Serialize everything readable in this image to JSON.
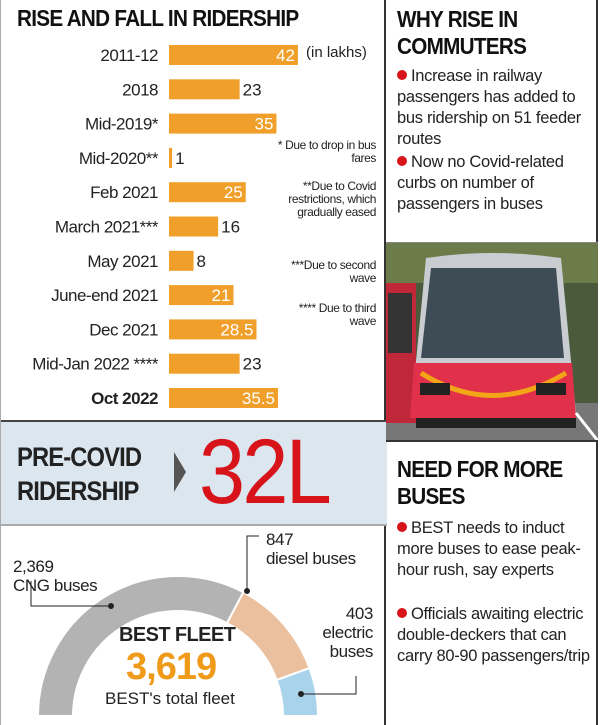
{
  "chart_data": {
    "type": "bar",
    "orientation": "horizontal",
    "title": "RISE AND FALL IN RIDERSHIP",
    "unit_label": "(in lakhs)",
    "categories": [
      "2011-12",
      "2018",
      "Mid-2019*",
      "Mid-2020**",
      "Feb 2021",
      "March 2021***",
      "May 2021",
      "June-end 2021",
      "Dec 2021",
      "Mid-Jan 2022 ****",
      "Oct 2022"
    ],
    "values": [
      42,
      23,
      35,
      1,
      25,
      16,
      8,
      21,
      28.5,
      23,
      35.5
    ],
    "value_labels": [
      "42",
      "23",
      "35",
      "1",
      "25",
      "16",
      "8",
      "21",
      "28.5",
      "23",
      "35.5"
    ],
    "bold_category": "Oct 2022",
    "bar_color": "#f0a02a",
    "footnotes": [
      "* Due to drop in bus fares",
      "**Due to Covid restrictions, which gradually eased",
      "***Due to second wave",
      "**** Due to third wave"
    ]
  },
  "precovid": {
    "label_line1": "PRE-COVID",
    "label_line2": "RIDERSHIP",
    "value": "32L",
    "value_color": "#d7141a"
  },
  "fleet": {
    "title": "BEST FLEET",
    "total": "3,619",
    "total_caption": "BEST's total fleet",
    "segments": [
      {
        "value": 2369,
        "value_label": "2,369",
        "label": "CNG buses",
        "color": "#b3b3b3"
      },
      {
        "value": 847,
        "value_label": "847",
        "label": "diesel buses",
        "color": "#ebc09e"
      },
      {
        "value": 403,
        "value_label": "403",
        "label_line1": "electric",
        "label_line2": "buses",
        "color": "#a9d3ea"
      }
    ]
  },
  "why": {
    "title_line1": "WHY RISE IN",
    "title_line2": "COMMUTERS",
    "bullets": [
      "Increase in railway passengers has added to bus ridership on 51 feeder routes",
      "Now no Covid-related curbs on number of passengers in buses"
    ]
  },
  "need": {
    "title_line1": "NEED FOR MORE",
    "title_line2": "BUSES",
    "bullets": [
      "BEST needs to induct more buses to ease peak-hour rush, say experts",
      "Officials awaiting electric double-deckers that can carry 80-90 passengers/trip"
    ]
  }
}
